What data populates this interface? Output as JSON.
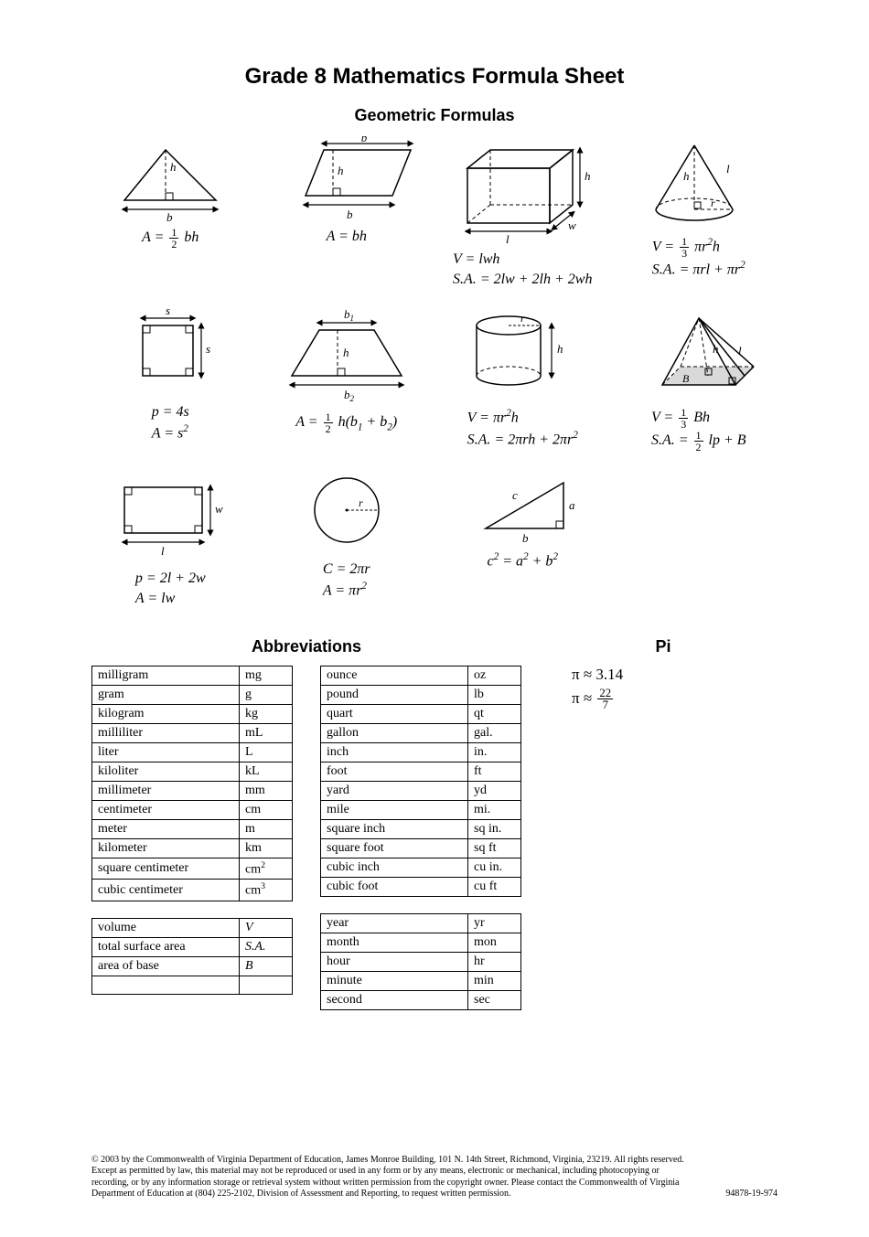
{
  "title": "Grade 8 Mathematics Formula Sheet",
  "geom_heading": "Geometric Formulas",
  "abbrev_heading": "Abbreviations",
  "pi_heading": "Pi",
  "formulas": {
    "triangle": "A = ½ bh",
    "parallelogram": "A = bh",
    "prism_v": "V = lwh",
    "prism_sa": "S.A. = 2lw + 2lh + 2wh",
    "cone_v": "V = ⅓ πr²h",
    "cone_sa": "S.A. = πrl + πr²",
    "square_p": "p = 4s",
    "square_a": "A = s²",
    "trapezoid": "A = ½ h(b₁ + b₂)",
    "cylinder_v": "V = πr²h",
    "cylinder_sa": "S.A. = 2πrh + 2πr²",
    "pyramid_v": "V = ⅓ Bh",
    "pyramid_sa": "S.A. = ½ lp + B",
    "rect_p": "p = 2l + 2w",
    "rect_a": "A = lw",
    "circle_c": "C = 2πr",
    "circle_a": "A = πr²",
    "pythag": "c² = a² + b²"
  },
  "abbrev_tables": {
    "metric": [
      [
        "milligram",
        "mg"
      ],
      [
        "gram",
        "g"
      ],
      [
        "kilogram",
        "kg"
      ],
      [
        "milliliter",
        "mL"
      ],
      [
        "liter",
        "L"
      ],
      [
        "kiloliter",
        "kL"
      ],
      [
        "millimeter",
        "mm"
      ],
      [
        "centimeter",
        "cm"
      ],
      [
        "meter",
        "m"
      ],
      [
        "kilometer",
        "km"
      ],
      [
        "square centimeter",
        "cm²"
      ],
      [
        "cubic centimeter",
        "cm³"
      ]
    ],
    "geom_sym": [
      [
        "volume",
        "V"
      ],
      [
        "total surface area",
        "S.A."
      ],
      [
        "area of base",
        "B"
      ],
      [
        "",
        ""
      ]
    ],
    "imperial": [
      [
        "ounce",
        "oz"
      ],
      [
        "pound",
        "lb"
      ],
      [
        "quart",
        "qt"
      ],
      [
        "gallon",
        "gal."
      ],
      [
        "inch",
        "in."
      ],
      [
        "foot",
        "ft"
      ],
      [
        "yard",
        "yd"
      ],
      [
        "mile",
        "mi."
      ],
      [
        "square inch",
        "sq in."
      ],
      [
        "square foot",
        "sq ft"
      ],
      [
        "cubic inch",
        "cu in."
      ],
      [
        "cubic foot",
        "cu ft"
      ]
    ],
    "time": [
      [
        "year",
        "yr"
      ],
      [
        "month",
        "mon"
      ],
      [
        "hour",
        "hr"
      ],
      [
        "minute",
        "min"
      ],
      [
        "second",
        "sec"
      ]
    ]
  },
  "pi": {
    "decimal": "3.14",
    "frac_n": "22",
    "frac_d": "7"
  },
  "copyright": "© 2003 by the Commonwealth of Virginia Department of Education, James Monroe Building, 101 N. 14th Street, Richmond, Virginia, 23219. All rights reserved. Except as permitted by law, this material may not be reproduced or used in any form or by any means, electronic or mechanical, including photocopying or recording, or by any information storage or retrieval system without written permission from the copyright owner. Please contact the Commonwealth of Virginia Department of Education at (804) 225-2102, Division of Assessment and Reporting, to request written permission.",
  "docnum": "94878-19-974",
  "style": {
    "stroke": "#000000",
    "stroke_width": 1.5,
    "dash": "4,3",
    "arrow_size": 5
  }
}
